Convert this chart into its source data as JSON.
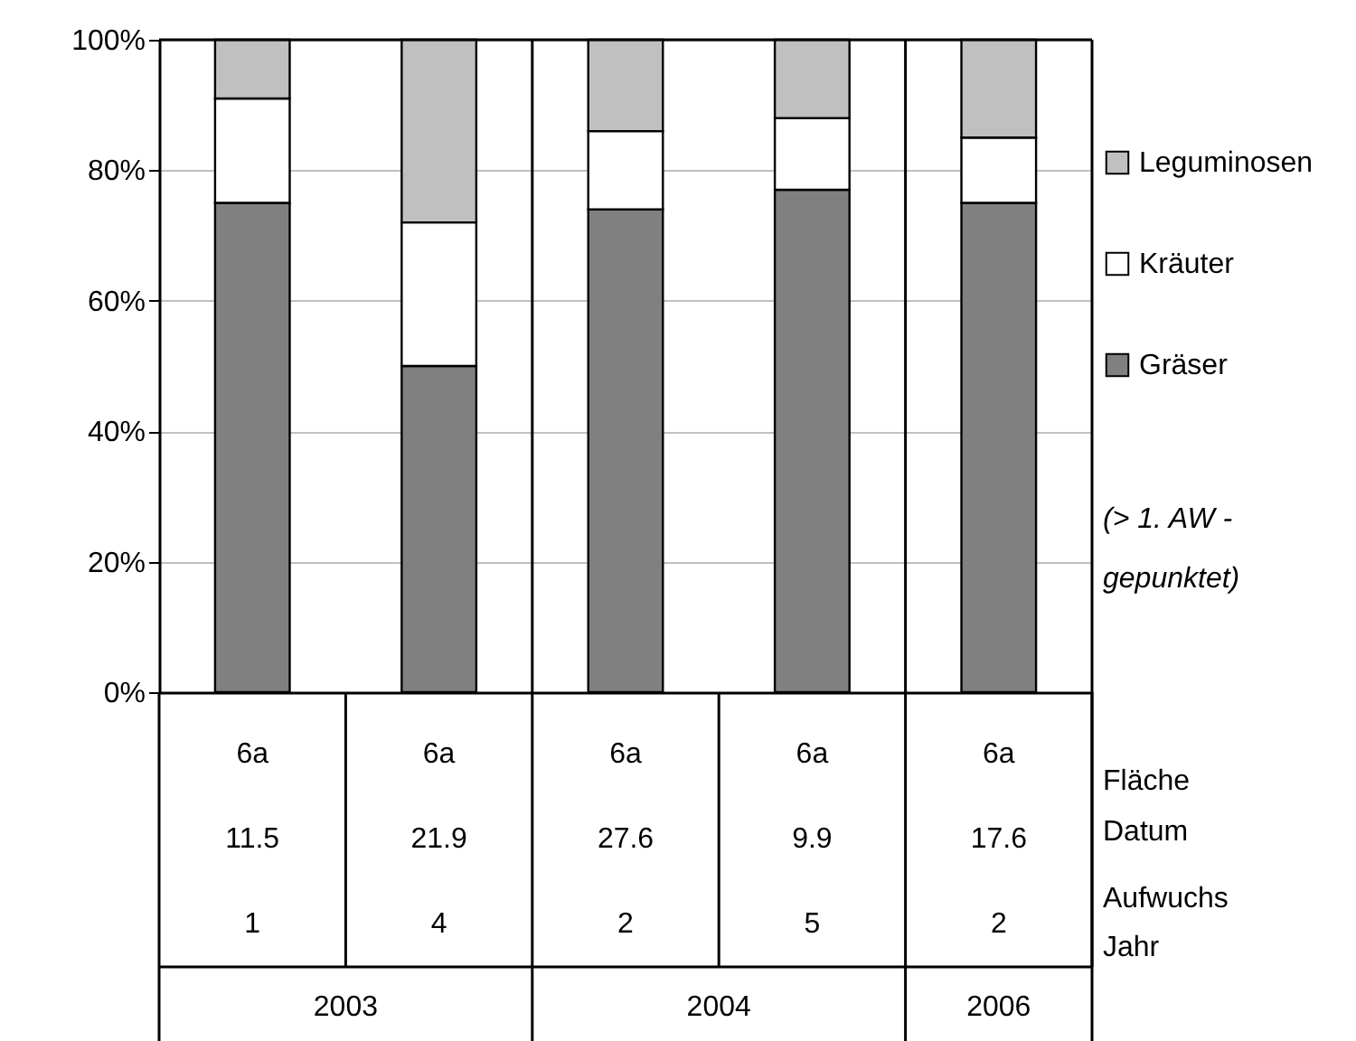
{
  "chart_data": {
    "type": "bar",
    "stacked": true,
    "categories": [
      "6a\n11.5\n1",
      "6a\n21.9\n4",
      "6a\n27.6\n2",
      "6a\n9.9\n5",
      "6a\n17.6\n2"
    ],
    "series": [
      {
        "name": "Gräser",
        "color": "#808080",
        "values": [
          75,
          50,
          74,
          77,
          75
        ]
      },
      {
        "name": "Kräuter",
        "color": "#ffffff",
        "values": [
          16,
          22,
          12,
          11,
          10
        ]
      },
      {
        "name": "Leguminosen",
        "color": "#c0c0c0",
        "values": [
          9,
          28,
          14,
          12,
          15
        ]
      }
    ],
    "ylim": [
      0,
      100
    ],
    "yticks": [
      {
        "value": 0,
        "label": "0%"
      },
      {
        "value": 20,
        "label": "20%"
      },
      {
        "value": 40,
        "label": "40%"
      },
      {
        "value": 60,
        "label": "60%"
      },
      {
        "value": 80,
        "label": "80%"
      },
      {
        "value": 100,
        "label": "100%"
      }
    ],
    "grid": "y",
    "legend": "right",
    "annotations": [
      "(> 1. AW -\ngepunktet)",
      "Fläche",
      "Datum",
      "Aufwuchs",
      "Jahr",
      "2003",
      "2004",
      "2006"
    ]
  }
}
